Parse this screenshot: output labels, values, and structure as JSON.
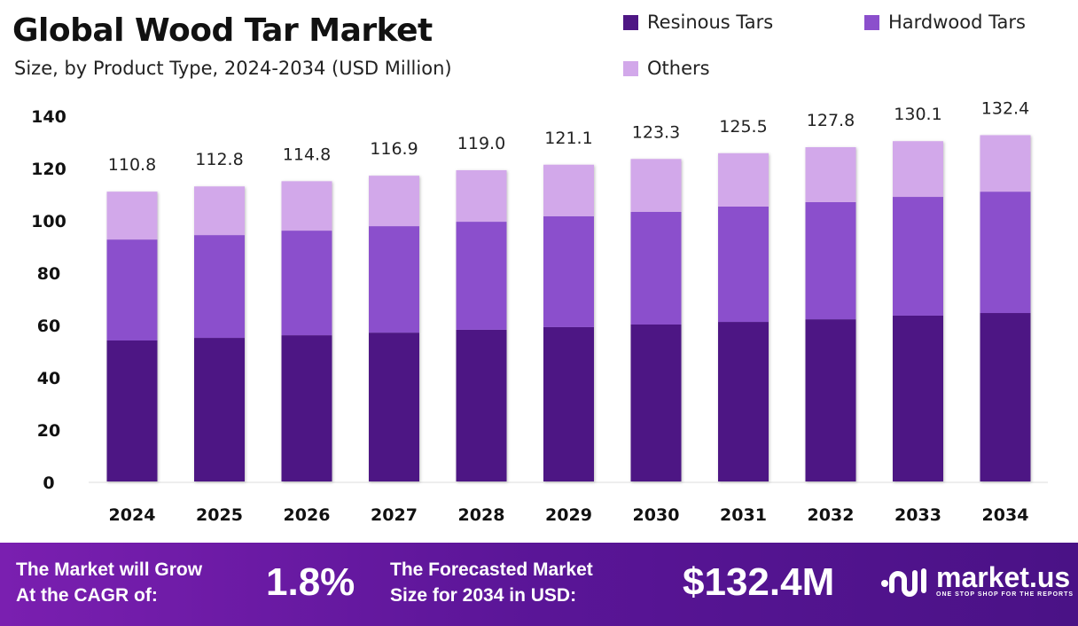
{
  "chart_data": {
    "type": "bar",
    "stacked": true,
    "title": "Global Wood Tar Market",
    "subtitle": "Size, by Product Type, 2024-2034 (USD Million)",
    "categories": [
      "2024",
      "2025",
      "2026",
      "2027",
      "2028",
      "2029",
      "2030",
      "2031",
      "2032",
      "2033",
      "2034"
    ],
    "series": [
      {
        "name": "Resinous Tars",
        "color": "#4e1784",
        "values": [
          53.9,
          54.9,
          55.9,
          56.9,
          58.0,
          59.0,
          60.0,
          61.0,
          62.0,
          63.4,
          64.4
        ]
      },
      {
        "name": "Hardwood Tars",
        "color": "#8b4fcc",
        "values": [
          38.6,
          39.3,
          40.0,
          40.7,
          41.3,
          42.4,
          43.1,
          44.1,
          44.8,
          45.4,
          46.4
        ]
      },
      {
        "name": "Others",
        "color": "#d2a8ea",
        "values": [
          18.3,
          18.6,
          18.9,
          19.3,
          19.7,
          19.7,
          20.2,
          20.4,
          21.0,
          21.3,
          21.6
        ]
      }
    ],
    "totals": [
      "110.8",
      "112.8",
      "114.8",
      "116.9",
      "119.0",
      "121.1",
      "123.3",
      "125.5",
      "127.8",
      "130.1",
      "132.4"
    ],
    "yticks": [
      "0",
      "20",
      "40",
      "60",
      "80",
      "100",
      "120",
      "140"
    ],
    "ylim": [
      0,
      140
    ],
    "grid": false,
    "legend": "top-right"
  },
  "footer": {
    "cagr_label_1": "The Market will Grow",
    "cagr_label_2": "At the CAGR of:",
    "cagr_value": "1.8%",
    "forecast_label_1": "The Forecasted Market",
    "forecast_label_2": "Size for 2034 in USD:",
    "forecast_value": "$132.4M",
    "logo_name": "market.us",
    "logo_tagline": "ONE STOP SHOP FOR THE REPORTS"
  }
}
